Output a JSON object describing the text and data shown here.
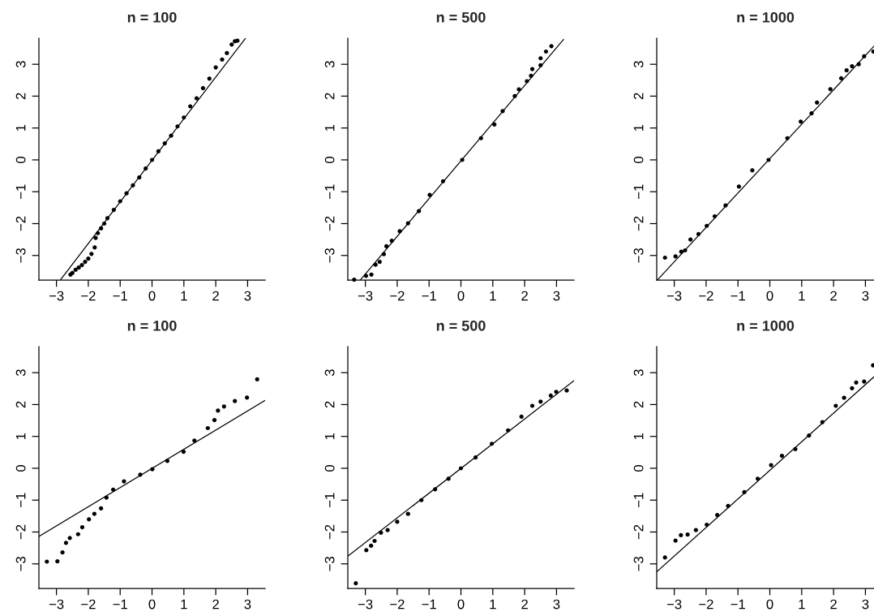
{
  "chart_data": [
    {
      "type": "scatter",
      "title": "n = 100",
      "xlim": [
        -3.55,
        3.55
      ],
      "ylim": [
        -3.77,
        3.82
      ],
      "xticks": [
        -3,
        -2,
        -1,
        0,
        1,
        2,
        3
      ],
      "yticks": [
        -3,
        -2,
        -1,
        0,
        1,
        2,
        3
      ],
      "series": [
        {
          "marker": "circle",
          "color": "#000000",
          "x": [
            -2.56,
            -2.5,
            -2.4,
            -2.3,
            -2.2,
            -2.1,
            -2.0,
            -1.9,
            -1.8,
            -1.77,
            -1.7,
            -1.6,
            -1.5,
            -1.4,
            -1.2,
            -1.0,
            -0.8,
            -0.6,
            -0.4,
            -0.2,
            0,
            0.2,
            0.4,
            0.6,
            0.8,
            1.0,
            1.2,
            1.4,
            1.6,
            1.8,
            2.0,
            2.2,
            2.35,
            2.5,
            2.6,
            2.68
          ],
          "values": [
            -3.6,
            -3.55,
            -3.45,
            -3.38,
            -3.3,
            -3.2,
            -3.1,
            -2.95,
            -2.75,
            -2.45,
            -2.3,
            -2.15,
            -2.0,
            -1.83,
            -1.57,
            -1.3,
            -1.05,
            -0.8,
            -0.55,
            -0.27,
            0,
            0.27,
            0.52,
            0.76,
            1.05,
            1.33,
            1.68,
            1.93,
            2.25,
            2.55,
            2.9,
            3.15,
            3.35,
            3.62,
            3.72,
            3.74
          ]
        },
        {
          "type": "line",
          "color": "#000000",
          "x": [
            -2.87,
            2.93
          ],
          "values": [
            -3.76,
            3.81
          ]
        }
      ]
    },
    {
      "type": "scatter",
      "title": "n = 500",
      "xlim": [
        -3.55,
        3.55
      ],
      "ylim": [
        -3.77,
        3.82
      ],
      "xticks": [
        -3,
        -2,
        -1,
        0,
        1,
        2,
        3
      ],
      "yticks": [
        -3,
        -2,
        -1,
        0,
        1,
        2,
        3
      ],
      "series": [
        {
          "marker": "circle",
          "color": "#000000",
          "x": [
            -3.35,
            -2.98,
            -2.81,
            -2.68,
            -2.55,
            -2.42,
            -2.34,
            -2.17,
            -1.92,
            -1.66,
            -1.32,
            -0.98,
            -0.56,
            0.04,
            0.63,
            1.05,
            1.31,
            1.69,
            1.82,
            2.07,
            2.2,
            2.24,
            2.5,
            2.5,
            2.67,
            2.84
          ],
          "values": [
            -3.76,
            -3.64,
            -3.6,
            -3.29,
            -3.2,
            -2.96,
            -2.71,
            -2.54,
            -2.24,
            -1.99,
            -1.61,
            -1.1,
            -0.67,
            0.0,
            0.68,
            1.11,
            1.53,
            2.0,
            2.21,
            2.47,
            2.64,
            2.85,
            2.97,
            3.19,
            3.4,
            3.57
          ]
        },
        {
          "type": "line",
          "color": "#000000",
          "x": [
            -3.15,
            3.22
          ],
          "values": [
            -3.76,
            3.78
          ]
        }
      ]
    },
    {
      "type": "scatter",
      "title": "n = 1000",
      "xlim": [
        -3.55,
        3.27
      ],
      "ylim": [
        -3.77,
        3.82
      ],
      "xticks": [
        -3,
        -2,
        -1,
        0,
        1,
        2,
        3
      ],
      "yticks": [
        -3,
        -2,
        -1,
        0,
        1,
        2,
        3
      ],
      "series": [
        {
          "marker": "circle",
          "color": "#000000",
          "x": [
            -3.29,
            -2.96,
            -2.78,
            -2.66,
            -2.49,
            -2.24,
            -1.98,
            -1.73,
            -1.39,
            -0.97,
            -0.55,
            -0.04,
            0.55,
            0.97,
            1.31,
            1.48,
            1.9,
            2.24,
            2.41,
            2.58,
            2.79,
            2.96,
            3.25
          ],
          "values": [
            -3.07,
            -3.03,
            -2.88,
            -2.84,
            -2.5,
            -2.33,
            -2.07,
            -1.77,
            -1.43,
            -0.84,
            -0.33,
            0.0,
            0.68,
            1.2,
            1.46,
            1.8,
            2.22,
            2.56,
            2.81,
            2.94,
            3.0,
            3.25,
            3.4
          ]
        },
        {
          "type": "line",
          "color": "#000000",
          "x": [
            -3.52,
            3.27
          ],
          "values": [
            -3.76,
            3.57
          ]
        }
      ]
    },
    {
      "type": "scatter",
      "title": "n = 100",
      "xlim": [
        -3.55,
        3.55
      ],
      "ylim": [
        -3.77,
        3.82
      ],
      "xticks": [
        -3,
        -2,
        -1,
        0,
        1,
        2,
        3
      ],
      "yticks": [
        -3,
        -2,
        -1,
        0,
        1,
        2,
        3
      ],
      "series": [
        {
          "marker": "circle",
          "color": "#000000",
          "x": [
            -3.3,
            -2.97,
            -2.81,
            -2.7,
            -2.58,
            -2.32,
            -2.19,
            -1.98,
            -1.81,
            -1.6,
            -1.43,
            -1.22,
            -0.88,
            -0.37,
            0.01,
            0.48,
            0.99,
            1.33,
            1.75,
            1.96,
            2.07,
            2.26,
            2.6,
            2.98,
            3.3
          ],
          "values": [
            -2.93,
            -2.92,
            -2.64,
            -2.34,
            -2.19,
            -2.07,
            -1.85,
            -1.6,
            -1.43,
            -1.26,
            -0.92,
            -0.67,
            -0.41,
            -0.2,
            -0.03,
            0.23,
            0.52,
            0.87,
            1.26,
            1.51,
            1.81,
            1.94,
            2.11,
            2.22,
            2.79
          ]
        },
        {
          "type": "line",
          "color": "#000000",
          "x": [
            -3.55,
            3.55
          ],
          "values": [
            -2.14,
            2.13
          ]
        }
      ]
    },
    {
      "type": "scatter",
      "title": "n = 500",
      "xlim": [
        -3.55,
        3.55
      ],
      "ylim": [
        -3.77,
        3.82
      ],
      "xticks": [
        -3,
        -2,
        -1,
        0,
        1,
        2,
        3
      ],
      "yticks": [
        -3,
        -2,
        -1,
        0,
        1,
        2,
        3
      ],
      "series": [
        {
          "marker": "circle",
          "color": "#000000",
          "x": [
            -3.3,
            -2.97,
            -2.82,
            -2.71,
            -2.51,
            -2.3,
            -2.0,
            -1.66,
            -1.24,
            -0.81,
            -0.39,
            0.0,
            0.46,
            0.97,
            1.48,
            1.9,
            2.24,
            2.5,
            2.82,
            2.99,
            3.32
          ],
          "values": [
            -3.61,
            -2.57,
            -2.43,
            -2.28,
            -2.02,
            -1.94,
            -1.68,
            -1.43,
            -1.0,
            -0.66,
            -0.33,
            0.0,
            0.34,
            0.77,
            1.19,
            1.62,
            1.96,
            2.09,
            2.28,
            2.4,
            2.44
          ]
        },
        {
          "type": "line",
          "color": "#000000",
          "x": [
            -3.55,
            3.55
          ],
          "values": [
            -2.76,
            2.75
          ]
        }
      ]
    },
    {
      "type": "scatter",
      "title": "n = 1000",
      "xlim": [
        -3.55,
        3.27
      ],
      "ylim": [
        -3.77,
        3.82
      ],
      "xticks": [
        -3,
        -2,
        -1,
        0,
        1,
        2,
        3
      ],
      "yticks": [
        -3,
        -2,
        -1,
        0,
        1,
        2,
        3
      ],
      "series": [
        {
          "marker": "circle",
          "color": "#000000",
          "x": [
            -3.29,
            -2.96,
            -2.79,
            -2.58,
            -2.32,
            -1.98,
            -1.65,
            -1.31,
            -0.8,
            -0.38,
            0.04,
            0.38,
            0.8,
            1.23,
            1.65,
            2.07,
            2.33,
            2.58,
            2.71,
            2.96,
            3.24
          ],
          "values": [
            -2.8,
            -2.27,
            -2.1,
            -2.08,
            -1.94,
            -1.77,
            -1.47,
            -1.18,
            -0.75,
            -0.33,
            0.1,
            0.39,
            0.6,
            1.03,
            1.45,
            1.96,
            2.21,
            2.51,
            2.69,
            2.72,
            3.23
          ]
        },
        {
          "type": "line",
          "color": "#000000",
          "x": [
            -3.55,
            3.27
          ],
          "values": [
            -3.25,
            2.87
          ]
        }
      ]
    }
  ]
}
